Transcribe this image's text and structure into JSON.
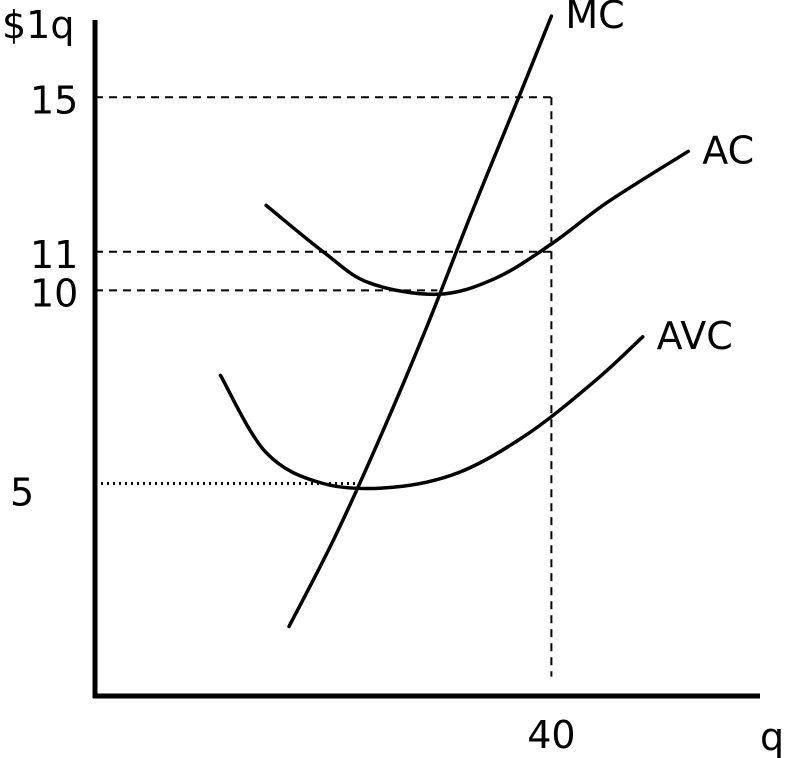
{
  "chart_data": {
    "type": "line",
    "title": "",
    "ylabel": "$1q",
    "xlabel": "q",
    "y_ticks": [
      {
        "value": 15,
        "label": "15"
      },
      {
        "value": 11,
        "label": "11"
      },
      {
        "value": 10,
        "label": "10"
      },
      {
        "value": 5,
        "label": "5"
      }
    ],
    "x_ticks": [
      {
        "value": 40,
        "label": "40"
      }
    ],
    "ylim": [
      -0.5,
      17
    ],
    "xlim": [
      0,
      61
    ],
    "grid": false,
    "series": [
      {
        "name": "MC",
        "points": [
          [
            17,
            1.3
          ],
          [
            21,
            3.6
          ],
          [
            25,
            6.2
          ],
          [
            29,
            9.0
          ],
          [
            33,
            12.0
          ],
          [
            37,
            14.9
          ],
          [
            40,
            17.1
          ]
        ]
      },
      {
        "name": "AC",
        "points": [
          [
            15,
            12.2
          ],
          [
            20,
            11.0
          ],
          [
            24,
            10.2
          ],
          [
            30,
            9.9
          ],
          [
            35,
            10.3
          ],
          [
            40,
            11.2
          ],
          [
            45,
            12.3
          ],
          [
            52,
            13.6
          ]
        ]
      },
      {
        "name": "AVC",
        "points": [
          [
            11,
            7.8
          ],
          [
            15,
            5.8
          ],
          [
            20,
            5.0
          ],
          [
            26,
            4.9
          ],
          [
            32,
            5.3
          ],
          [
            38,
            6.3
          ],
          [
            44,
            7.7
          ],
          [
            48,
            8.8
          ]
        ]
      }
    ],
    "reference_lines": [
      {
        "from": [
          0,
          15
        ],
        "to": [
          40,
          15
        ],
        "style": "dashed"
      },
      {
        "from": [
          40,
          15
        ],
        "to": [
          40,
          0
        ],
        "style": "dashed"
      },
      {
        "from": [
          0,
          11
        ],
        "to": [
          40,
          11
        ],
        "style": "dashed"
      },
      {
        "from": [
          0,
          10
        ],
        "to": [
          30,
          10
        ],
        "style": "dashed"
      },
      {
        "from": [
          0,
          5
        ],
        "to": [
          23,
          5
        ],
        "style": "dotted"
      }
    ]
  }
}
